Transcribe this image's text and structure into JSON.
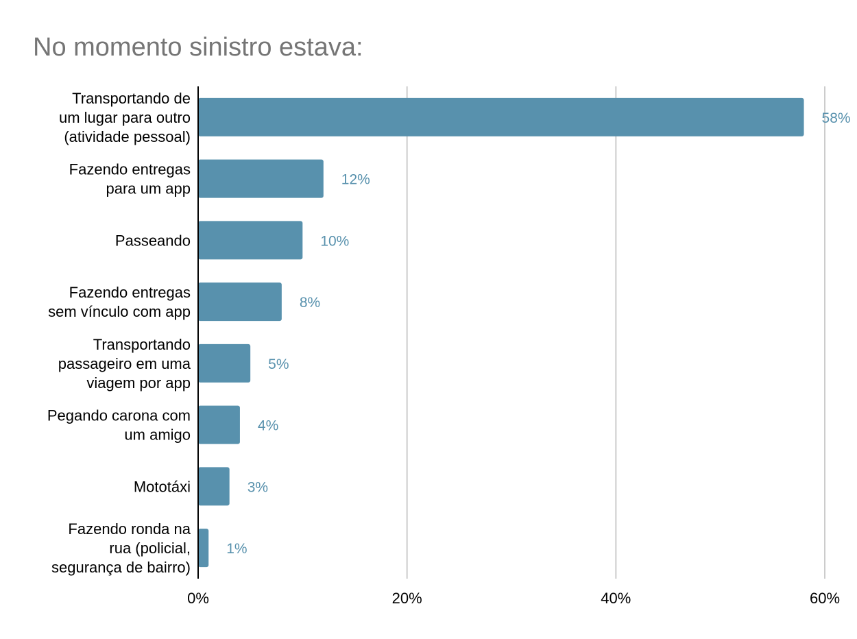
{
  "chart_data": {
    "type": "bar",
    "orientation": "horizontal",
    "title": "No momento sinistro estava:",
    "categories": [
      [
        "Transportando de",
        "um lugar para outro",
        "(atividade pessoal)"
      ],
      [
        "Fazendo entregas",
        "para um app"
      ],
      [
        "Passeando"
      ],
      [
        "Fazendo entregas",
        "sem vínculo com app"
      ],
      [
        "Transportando",
        "passageiro em uma",
        "viagem por app"
      ],
      [
        "Pegando carona com",
        "um amigo"
      ],
      [
        "Mototáxi"
      ],
      [
        "Fazendo ronda na",
        "rua (policial,",
        "segurança de bairro)"
      ]
    ],
    "values": [
      58,
      12,
      10,
      8,
      5,
      4,
      3,
      1
    ],
    "value_labels": [
      "58%",
      "12%",
      "10%",
      "8%",
      "5%",
      "4%",
      "3%",
      "1%"
    ],
    "xlim": [
      0,
      60
    ],
    "x_ticks": [
      0,
      20,
      40,
      60
    ],
    "x_tick_labels": [
      "0%",
      "20%",
      "40%",
      "60%"
    ],
    "xlabel": "",
    "ylabel": "",
    "grid": true,
    "legend": "none",
    "colors": {
      "bar": "#5891ad",
      "value_label": "#5891ad",
      "grid": "#cccccc",
      "axis": "#000000",
      "title": "#757575"
    }
  }
}
